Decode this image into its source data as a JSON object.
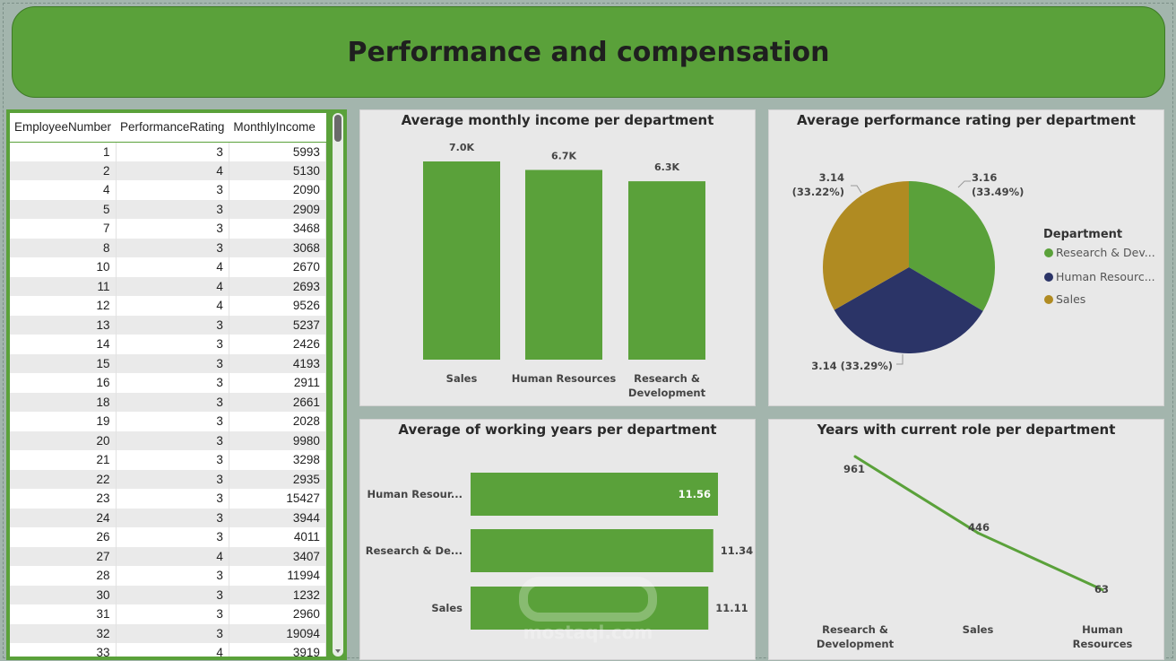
{
  "page": {
    "title": "Performance and compensation",
    "watermark_text": "mostaql.com",
    "colors": {
      "accent": "#5aa13a",
      "navy": "#2b3467",
      "gold": "#b08b22",
      "panel": "#e8e8e8"
    }
  },
  "table": {
    "columns": [
      "EmployeeNumber",
      "PerformanceRating",
      "MonthlyIncome"
    ],
    "rows": [
      [
        "1",
        "3",
        "5993"
      ],
      [
        "2",
        "4",
        "5130"
      ],
      [
        "4",
        "3",
        "2090"
      ],
      [
        "5",
        "3",
        "2909"
      ],
      [
        "7",
        "3",
        "3468"
      ],
      [
        "8",
        "3",
        "3068"
      ],
      [
        "10",
        "4",
        "2670"
      ],
      [
        "11",
        "4",
        "2693"
      ],
      [
        "12",
        "4",
        "9526"
      ],
      [
        "13",
        "3",
        "5237"
      ],
      [
        "14",
        "3",
        "2426"
      ],
      [
        "15",
        "3",
        "4193"
      ],
      [
        "16",
        "3",
        "2911"
      ],
      [
        "18",
        "3",
        "2661"
      ],
      [
        "19",
        "3",
        "2028"
      ],
      [
        "20",
        "3",
        "9980"
      ],
      [
        "21",
        "3",
        "3298"
      ],
      [
        "22",
        "3",
        "2935"
      ],
      [
        "23",
        "3",
        "15427"
      ],
      [
        "24",
        "3",
        "3944"
      ],
      [
        "26",
        "3",
        "4011"
      ],
      [
        "27",
        "4",
        "3407"
      ],
      [
        "28",
        "3",
        "11994"
      ],
      [
        "30",
        "3",
        "1232"
      ],
      [
        "31",
        "3",
        "2960"
      ],
      [
        "32",
        "3",
        "19094"
      ],
      [
        "33",
        "4",
        "3919"
      ]
    ]
  },
  "chart_data": [
    {
      "type": "bar",
      "title": "Average monthly income per department",
      "categories": [
        "Sales",
        "Human Resources",
        "Research & Development"
      ],
      "category_lines": [
        [
          "Sales"
        ],
        [
          "Human Resources"
        ],
        [
          "Research &",
          "Development"
        ]
      ],
      "values": [
        7000,
        6700,
        6300
      ],
      "labels": [
        "7.0K",
        "6.7K",
        "6.3K"
      ],
      "ylim": [
        0,
        7000
      ]
    },
    {
      "type": "pie",
      "title": "Average performance rating per department",
      "legend_title": "Department",
      "legend_labels": [
        "Research & Dev...",
        "Human Resourc...",
        "Sales"
      ],
      "categories": [
        "Research & Development",
        "Human Resources",
        "Sales"
      ],
      "values": [
        3.16,
        3.14,
        3.14
      ],
      "percents": [
        "33.49%",
        "33.29%",
        "33.22%"
      ],
      "labels": [
        "3.16",
        "3.14",
        "3.14"
      ],
      "colors": [
        "#5aa13a",
        "#2b3467",
        "#b08b22"
      ]
    },
    {
      "type": "bar",
      "orientation": "horizontal",
      "title": "Average of working years per department",
      "categories": [
        "Human Resources",
        "Research & Development",
        "Sales"
      ],
      "category_labels": [
        "Human Resour...",
        "Research & De...",
        "Sales"
      ],
      "values": [
        11.56,
        11.34,
        11.11
      ],
      "labels": [
        "11.56",
        "11.34",
        "11.11"
      ],
      "xlim": [
        0,
        11.56
      ]
    },
    {
      "type": "line",
      "title": "Years with current role per department",
      "categories": [
        "Research & Development",
        "Sales",
        "Human Resources"
      ],
      "category_lines": [
        [
          "Research &",
          "Development"
        ],
        [
          "Sales"
        ],
        [
          "Human",
          "Resources"
        ]
      ],
      "values": [
        961,
        446,
        63
      ],
      "labels": [
        "961",
        "446",
        "63"
      ],
      "ylim": [
        0,
        961
      ]
    }
  ]
}
